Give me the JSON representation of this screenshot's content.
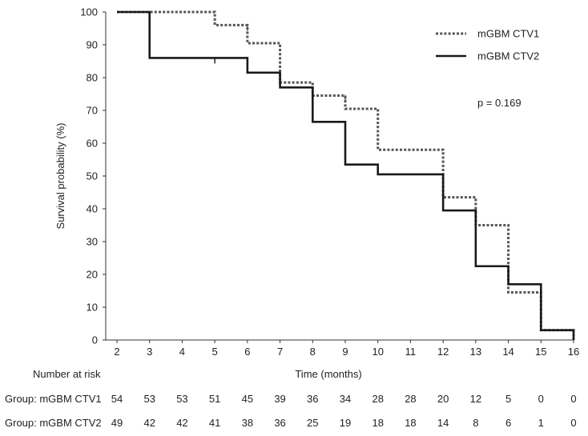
{
  "chart_data": {
    "type": "line",
    "subtype": "kaplan-meier step",
    "xlabel": "Time (months)",
    "ylabel": "Survival probability (%)",
    "xlim": [
      2,
      16
    ],
    "ylim": [
      0,
      100
    ],
    "x_ticks": [
      2,
      3,
      4,
      5,
      6,
      7,
      8,
      9,
      10,
      11,
      12,
      13,
      14,
      15,
      16
    ],
    "y_ticks": [
      0,
      10,
      20,
      30,
      40,
      50,
      60,
      70,
      80,
      90,
      100
    ],
    "annotation": "p = 0.169",
    "legend_position": "top-right",
    "series": [
      {
        "name": "mGBM CTV1",
        "style": "dotted",
        "color": "#555555",
        "steps": [
          [
            2,
            100
          ],
          [
            5,
            96
          ],
          [
            6,
            90.5
          ],
          [
            7,
            78.5
          ],
          [
            8,
            74.5
          ],
          [
            9,
            70.5
          ],
          [
            10,
            58
          ],
          [
            12,
            43.5
          ],
          [
            13,
            35
          ],
          [
            14,
            14.5
          ],
          [
            15,
            3
          ],
          [
            16,
            0
          ]
        ],
        "censor_ticks": [
          6,
          9
        ]
      },
      {
        "name": "mGBM CTV2",
        "style": "solid",
        "color": "#1a1a1a",
        "steps": [
          [
            2,
            100
          ],
          [
            3,
            86
          ],
          [
            6,
            81.5
          ],
          [
            7,
            77
          ],
          [
            8,
            66.5
          ],
          [
            9,
            53.5
          ],
          [
            10,
            50.5
          ],
          [
            12,
            39.5
          ],
          [
            13,
            22.5
          ],
          [
            14,
            17
          ],
          [
            15,
            3
          ],
          [
            16,
            0
          ]
        ],
        "censor_ticks": [
          5,
          6,
          8,
          9
        ]
      }
    ],
    "risk_table": {
      "title": "Number at risk",
      "times": [
        2,
        3,
        4,
        5,
        6,
        7,
        8,
        9,
        10,
        11,
        12,
        13,
        14,
        15,
        16
      ],
      "rows": [
        {
          "label": "Group: mGBM CTV1",
          "counts": [
            54,
            53,
            53,
            51,
            45,
            39,
            36,
            34,
            28,
            28,
            20,
            12,
            5,
            0,
            0
          ]
        },
        {
          "label": "Group: mGBM CTV2",
          "counts": [
            49,
            42,
            42,
            41,
            38,
            36,
            25,
            19,
            18,
            18,
            14,
            8,
            6,
            1,
            0
          ]
        }
      ]
    }
  }
}
